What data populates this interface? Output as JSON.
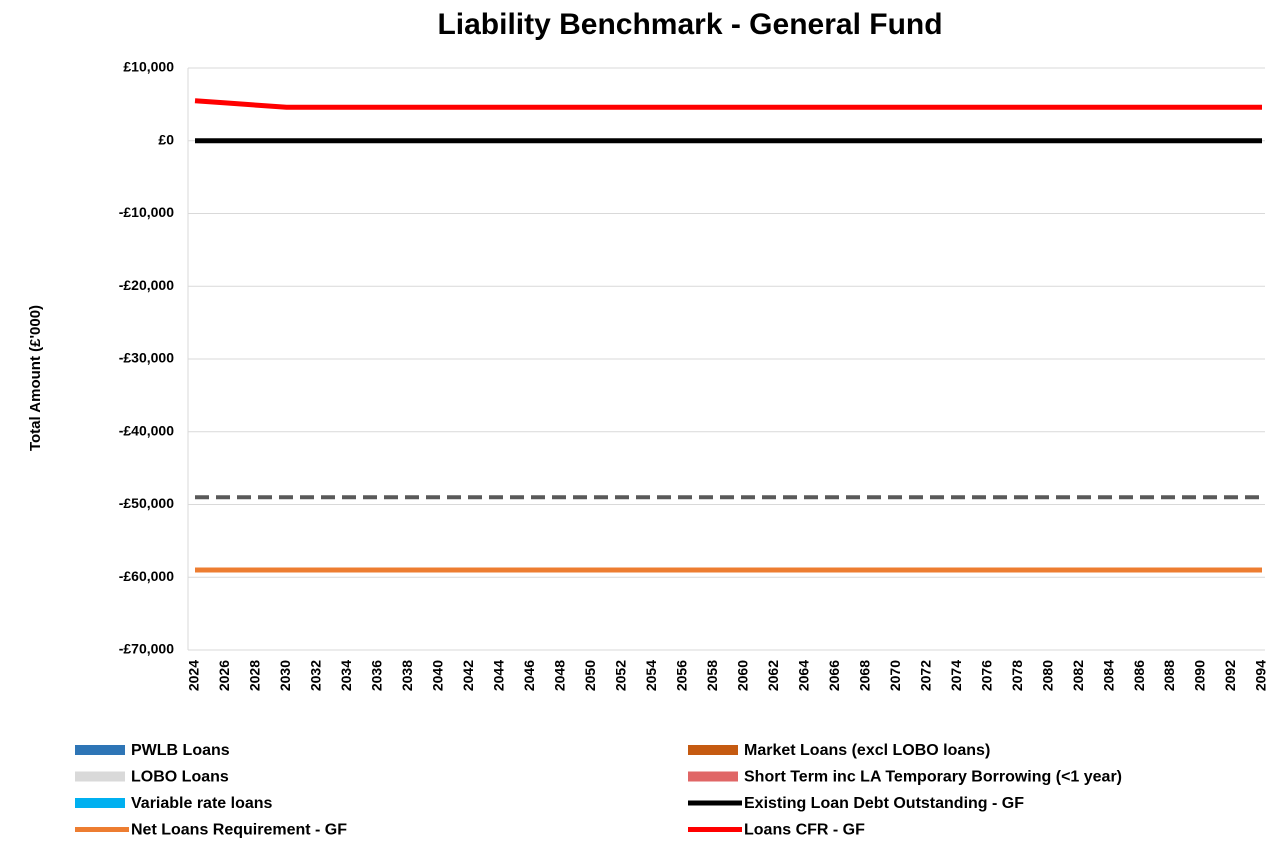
{
  "chart_data": {
    "type": "line",
    "title": "Liability Benchmark - General Fund",
    "y_label": "Total Amount (£'000)",
    "categories": [
      "2024",
      "2026",
      "2028",
      "2030",
      "2032",
      "2034",
      "2036",
      "2038",
      "2040",
      "2042",
      "2044",
      "2046",
      "2048",
      "2050",
      "2052",
      "2054",
      "2056",
      "2058",
      "2060",
      "2062",
      "2064",
      "2066",
      "2068",
      "2070",
      "2072",
      "2074",
      "2076",
      "2078",
      "2080",
      "2082",
      "2084",
      "2086",
      "2088",
      "2090",
      "2092",
      "2094"
    ],
    "ylim": [
      -70000,
      10000
    ],
    "yticks": [
      {
        "value": 10000,
        "label": "£10,000"
      },
      {
        "value": 0,
        "label": "£0"
      },
      {
        "value": -10000,
        "label": "-£10,000"
      },
      {
        "value": -20000,
        "label": "-£20,000"
      },
      {
        "value": -30000,
        "label": "-£30,000"
      },
      {
        "value": -40000,
        "label": "-£40,000"
      },
      {
        "value": -50000,
        "label": "-£50,000"
      },
      {
        "value": -60000,
        "label": "-£60,000"
      },
      {
        "value": -70000,
        "label": "-£70,000"
      }
    ],
    "grid": true,
    "legend": "bottom",
    "series": [
      {
        "name": "PWLB Loans",
        "color": "#2e75b6",
        "kind": "bar",
        "values": [
          0,
          0,
          0,
          0,
          0,
          0,
          0,
          0,
          0,
          0,
          0,
          0,
          0,
          0,
          0,
          0,
          0,
          0,
          0,
          0,
          0,
          0,
          0,
          0,
          0,
          0,
          0,
          0,
          0,
          0,
          0,
          0,
          0,
          0,
          0,
          0
        ]
      },
      {
        "name": "Market Loans (excl LOBO loans)",
        "color": "#c55a11",
        "kind": "bar",
        "values": [
          0,
          0,
          0,
          0,
          0,
          0,
          0,
          0,
          0,
          0,
          0,
          0,
          0,
          0,
          0,
          0,
          0,
          0,
          0,
          0,
          0,
          0,
          0,
          0,
          0,
          0,
          0,
          0,
          0,
          0,
          0,
          0,
          0,
          0,
          0,
          0
        ]
      },
      {
        "name": "LOBO Loans",
        "color": "#d9d9d9",
        "kind": "bar",
        "values": [
          0,
          0,
          0,
          0,
          0,
          0,
          0,
          0,
          0,
          0,
          0,
          0,
          0,
          0,
          0,
          0,
          0,
          0,
          0,
          0,
          0,
          0,
          0,
          0,
          0,
          0,
          0,
          0,
          0,
          0,
          0,
          0,
          0,
          0,
          0,
          0
        ]
      },
      {
        "name": "Short Term inc LA Temporary Borrowing (<1 year)",
        "color": "#e06666",
        "kind": "bar",
        "values": [
          0,
          0,
          0,
          0,
          0,
          0,
          0,
          0,
          0,
          0,
          0,
          0,
          0,
          0,
          0,
          0,
          0,
          0,
          0,
          0,
          0,
          0,
          0,
          0,
          0,
          0,
          0,
          0,
          0,
          0,
          0,
          0,
          0,
          0,
          0,
          0
        ]
      },
      {
        "name": "Variable rate loans",
        "color": "#00b0f0",
        "kind": "bar",
        "values": [
          0,
          0,
          0,
          0,
          0,
          0,
          0,
          0,
          0,
          0,
          0,
          0,
          0,
          0,
          0,
          0,
          0,
          0,
          0,
          0,
          0,
          0,
          0,
          0,
          0,
          0,
          0,
          0,
          0,
          0,
          0,
          0,
          0,
          0,
          0,
          0
        ]
      },
      {
        "name": "Existing Loan Debt Outstanding - GF",
        "color": "#000000",
        "kind": "line",
        "values": [
          0,
          0,
          0,
          0,
          0,
          0,
          0,
          0,
          0,
          0,
          0,
          0,
          0,
          0,
          0,
          0,
          0,
          0,
          0,
          0,
          0,
          0,
          0,
          0,
          0,
          0,
          0,
          0,
          0,
          0,
          0,
          0,
          0,
          0,
          0,
          0
        ]
      },
      {
        "name": "Net Loans Requirement - GF",
        "color": "#ed7d31",
        "kind": "line",
        "values": [
          -59000,
          -59000,
          -59000,
          -59000,
          -59000,
          -59000,
          -59000,
          -59000,
          -59000,
          -59000,
          -59000,
          -59000,
          -59000,
          -59000,
          -59000,
          -59000,
          -59000,
          -59000,
          -59000,
          -59000,
          -59000,
          -59000,
          -59000,
          -59000,
          -59000,
          -59000,
          -59000,
          -59000,
          -59000,
          -59000,
          -59000,
          -59000,
          -59000,
          -59000,
          -59000,
          -59000
        ]
      },
      {
        "name": "Loans CFR - GF",
        "color": "#ff0000",
        "kind": "line",
        "values": [
          5500,
          5200,
          4900,
          4600,
          4600,
          4600,
          4600,
          4600,
          4600,
          4600,
          4600,
          4600,
          4600,
          4600,
          4600,
          4600,
          4600,
          4600,
          4600,
          4600,
          4600,
          4600,
          4600,
          4600,
          4600,
          4600,
          4600,
          4600,
          4600,
          4600,
          4600,
          4600,
          4600,
          4600,
          4600,
          4600
        ]
      },
      {
        "color": "#595959",
        "kind": "line",
        "dash": true,
        "values": [
          -49000,
          -49000,
          -49000,
          -49000,
          -49000,
          -49000,
          -49000,
          -49000,
          -49000,
          -49000,
          -49000,
          -49000,
          -49000,
          -49000,
          -49000,
          -49000,
          -49000,
          -49000,
          -49000,
          -49000,
          -49000,
          -49000,
          -49000,
          -49000,
          -49000,
          -49000,
          -49000,
          -49000,
          -49000,
          -49000,
          -49000,
          -49000,
          -49000,
          -49000,
          -49000,
          -49000
        ]
      }
    ]
  }
}
